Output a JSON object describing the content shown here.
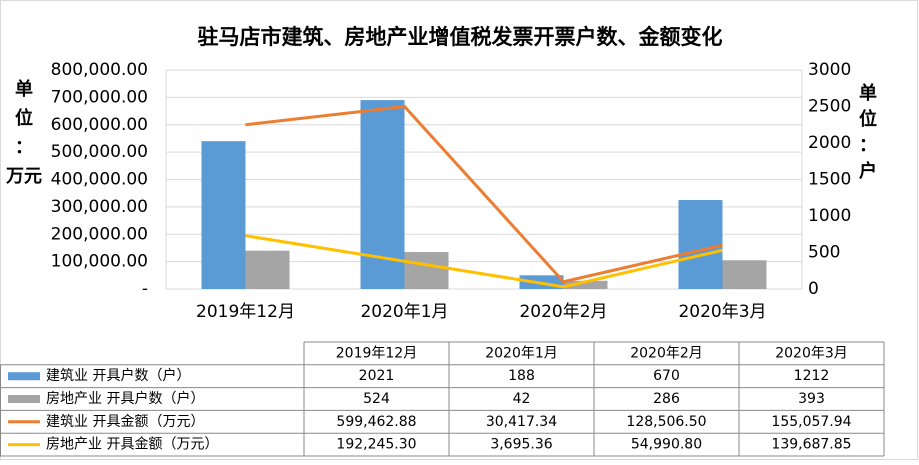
{
  "chart_data": {
    "type": "bar_line",
    "title": "驻马店市建筑、房地产业增值税发票开票户数、金额变化",
    "y_label": [
      "单",
      "位",
      "：",
      "万元"
    ],
    "y2_label": [
      "单",
      "位",
      "：",
      "户"
    ],
    "categories": [
      "2019年12月",
      "2020年1月",
      "2020年2月",
      "2020年3月"
    ],
    "ylim": [
      0,
      800000
    ],
    "yticks": [
      {
        "value": 0,
        "label": "-"
      },
      {
        "value": 100000,
        "label": "100,000.00"
      },
      {
        "value": 200000,
        "label": "200,000.00"
      },
      {
        "value": 300000,
        "label": "300,000.00"
      },
      {
        "value": 400000,
        "label": "400,000.00"
      },
      {
        "value": 500000,
        "label": "500,000.00"
      },
      {
        "value": 600000,
        "label": "600,000.00"
      },
      {
        "value": 700000,
        "label": "700,000.00"
      },
      {
        "value": 800000,
        "label": "800,000.00"
      }
    ],
    "y2lim": [
      0,
      3000
    ],
    "y2ticks": [
      0,
      500,
      1000,
      1500,
      2000,
      2500,
      3000
    ],
    "grid": true,
    "series": [
      {
        "name": "建筑业 开具户数（户）",
        "kind": "bar",
        "color": "#5b9bd5",
        "values": [
          540000,
          690000,
          50000,
          325000
        ],
        "table_values": [
          "2021",
          "188",
          "670",
          "1212"
        ]
      },
      {
        "name": "房地产业 开具户数（户）",
        "kind": "bar",
        "color": "#a5a5a5",
        "values": [
          140000,
          135000,
          30000,
          105000
        ],
        "table_values": [
          "524",
          "42",
          "286",
          "393"
        ]
      },
      {
        "name": "建筑业 开具金额（万元）",
        "kind": "line",
        "axis": "y2",
        "color": "#ed7d31",
        "values": [
          2250,
          2500,
          100,
          600
        ],
        "table_values": [
          "599,462.88",
          "30,417.34",
          "128,506.50",
          "155,057.94"
        ]
      },
      {
        "name": "房地产业 开具金额（万元）",
        "kind": "line",
        "axis": "y2",
        "color": "#ffc000",
        "values": [
          730,
          380,
          30,
          530
        ],
        "table_values": [
          "192,245.30",
          "3,695.36",
          "54,990.80",
          "139,687.85"
        ]
      }
    ]
  }
}
